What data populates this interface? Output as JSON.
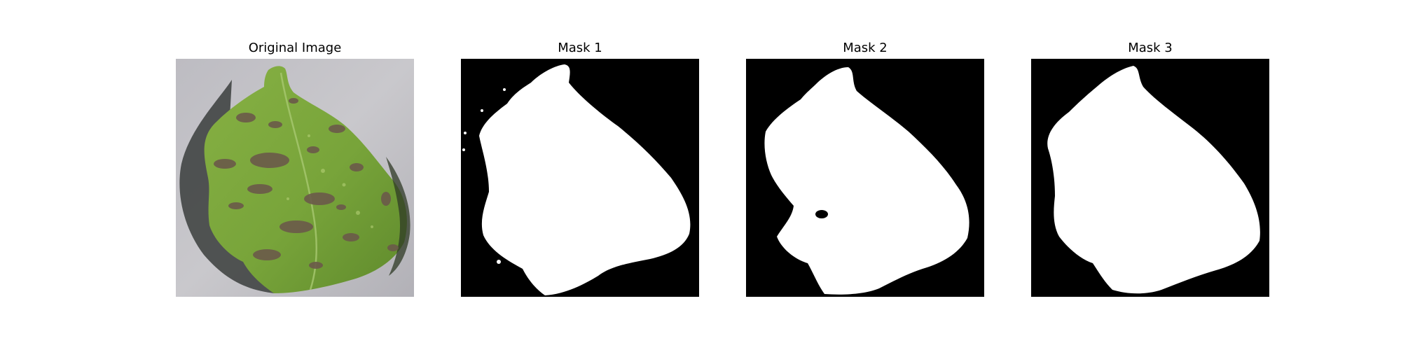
{
  "figure": {
    "panels": [
      {
        "title": "Original Image",
        "kind": "photo"
      },
      {
        "title": "Mask 1",
        "kind": "mask"
      },
      {
        "title": "Mask 2",
        "kind": "mask"
      },
      {
        "title": "Mask 3",
        "kind": "mask"
      }
    ]
  },
  "colors": {
    "background": "#c9c8cc",
    "leaf": "#7ba63e",
    "leaf_shadow": "#3f4a34",
    "lesion": "#6b5a4a",
    "mask_foreground": "#ffffff",
    "mask_background": "#000000"
  }
}
